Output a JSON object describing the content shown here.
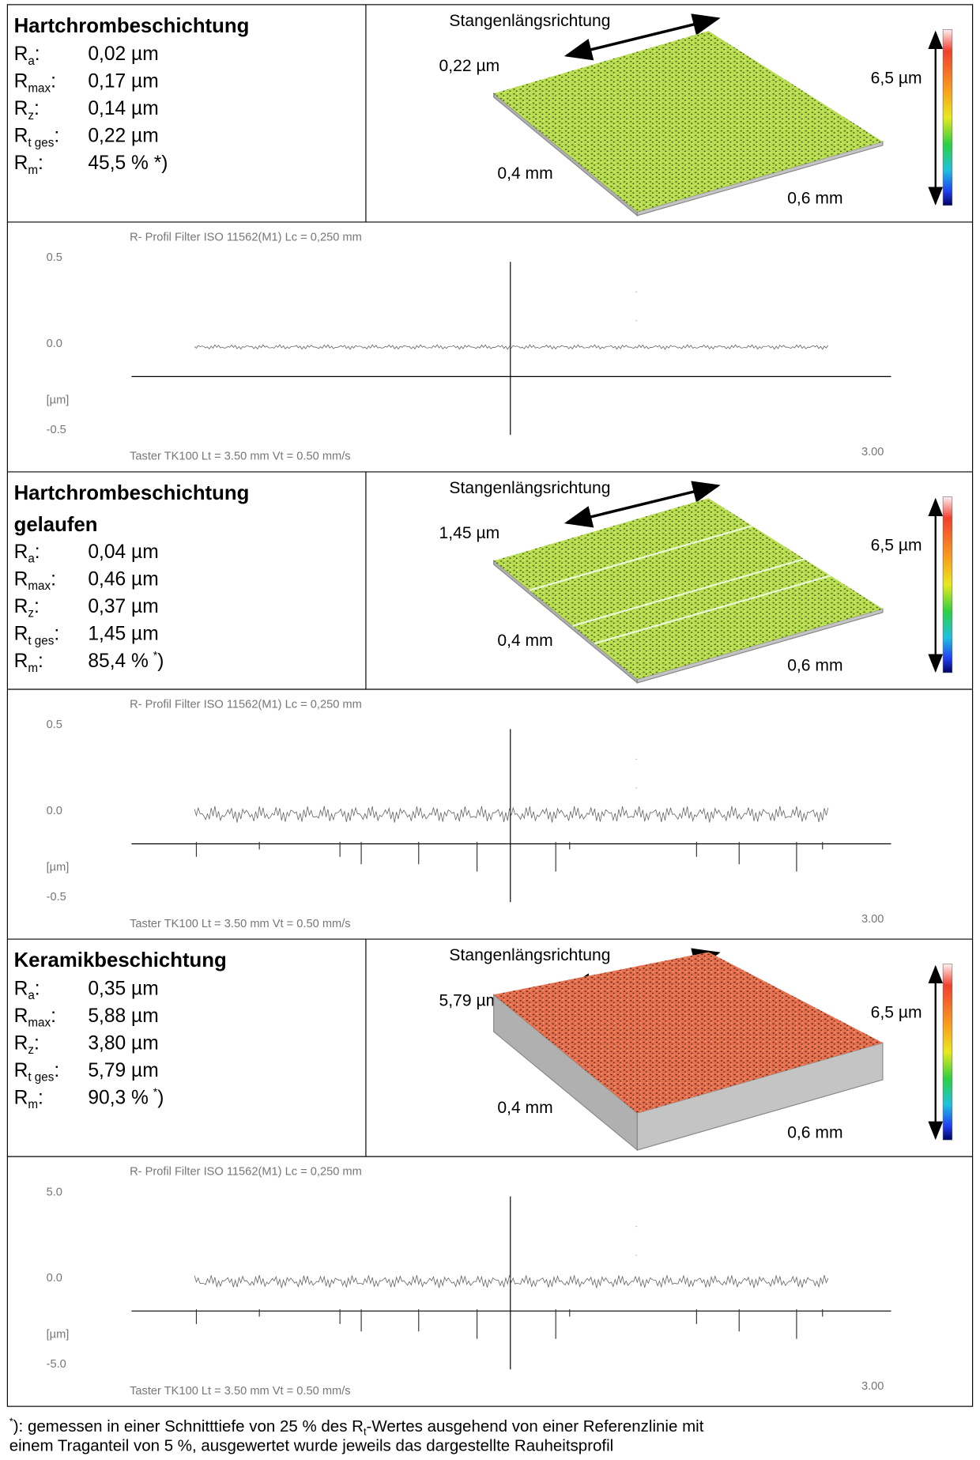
{
  "sections": [
    {
      "title": [
        "Hartchrombeschichtung"
      ],
      "params": [
        {
          "symbol": "R",
          "sub": "a",
          "value": "0,02 µm"
        },
        {
          "symbol": "R",
          "sub": "max",
          "value": "0,17 µm"
        },
        {
          "symbol": "R",
          "sub": "z",
          "value": "0,14 µm"
        },
        {
          "symbol": "R",
          "sub": "t ges",
          "value": "0,22 µm"
        },
        {
          "symbol": "R",
          "sub": "m",
          "value": "45,5 % *)"
        }
      ],
      "image": {
        "direction": "Stangenlängsrichtung",
        "height": "0,22 µm",
        "scale": "6,5 µm",
        "width": "0,4 mm",
        "length": "0,6 mm"
      },
      "profile": {
        "header": "R- Profil  Filter  ISO 11562(M1)  Lc = 0,250  mm",
        "yticks": [
          "0.5",
          "0.0",
          "[µm]",
          "-0.5"
        ],
        "footer": "Taster TK100    Lt = 3.50  mm    Vt = 0.50  mm/s",
        "end": "3.00"
      }
    },
    {
      "title": [
        "Hartchrombeschichtung",
        "gelaufen"
      ],
      "params": [
        {
          "symbol": "R",
          "sub": "a",
          "value": "0,04 µm"
        },
        {
          "symbol": "R",
          "sub": "max",
          "value": "0,46 µm"
        },
        {
          "symbol": "R",
          "sub": "z",
          "value": "0,37 µm"
        },
        {
          "symbol": "R",
          "sub": "t ges",
          "value": "1,45 µm"
        },
        {
          "symbol": "R",
          "sub": "m",
          "value": "85,4 %",
          "note": "*",
          "close": ")"
        }
      ],
      "image": {
        "direction": "Stangenlängsrichtung",
        "height": "1,45 µm",
        "scale": "6,5 µm",
        "width": "0,4 mm",
        "length": "0,6 mm"
      },
      "profile": {
        "header": "R- Profil  Filter  ISO 11562(M1)  Lc = 0,250  mm",
        "yticks": [
          "0.5",
          "0.0",
          "[µm]",
          "-0.5"
        ],
        "footer": "Taster TK100    Lt = 3.50  mm    Vt = 0.50  mm/s",
        "end": "3.00"
      }
    },
    {
      "title": [
        "Keramikbeschichtung"
      ],
      "params": [
        {
          "symbol": "R",
          "sub": "a",
          "value": "0,35 µm"
        },
        {
          "symbol": "R",
          "sub": "max",
          "value": "5,88 µm"
        },
        {
          "symbol": "R",
          "sub": "z",
          "value": "3,80 µm"
        },
        {
          "symbol": "R",
          "sub": "t ges",
          "value": "5,79 µm"
        },
        {
          "symbol": "R",
          "sub": "m",
          "value": "90,3 %",
          "note": "*",
          "close": ")"
        }
      ],
      "image": {
        "direction": "Stangenlängsrichtung",
        "height": "5,79 µm",
        "scale": "6,5 µm",
        "width": "0,4 mm",
        "length": "0,6 mm"
      },
      "profile": {
        "header": "R- Profil  Filter  ISO 11562(M1)  Lc = 0,250  mm",
        "yticks": [
          "5.0",
          "0.0",
          "[µm]",
          "-5.0"
        ],
        "footer": "Taster TK100    Lt = 3.50  mm    Vt = 0.50  mm/s",
        "end": "3.00"
      }
    }
  ],
  "footnote": {
    "note": "*",
    "text_before": "): gemessen in einer Schnitttiefe von 25 % des R",
    "sub": "t",
    "text_after": "-Wertes ausgehend von einer Referenzlinie mit",
    "line2": "einem Traganteil von 5 %, ausgewertet wurde jeweils das dargestellte Rauheitsprofil"
  }
}
